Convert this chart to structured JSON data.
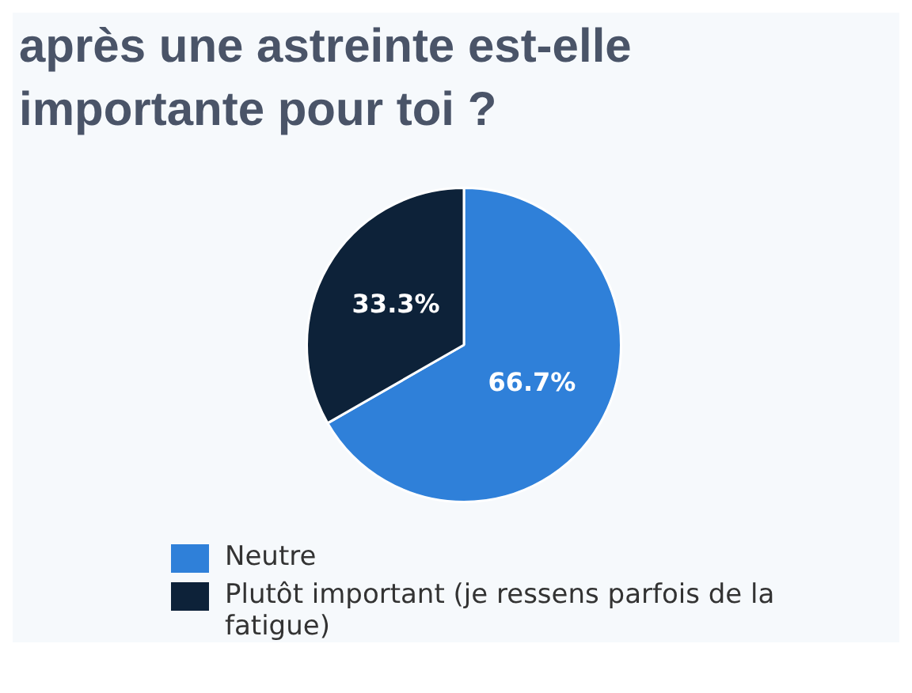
{
  "chart_data": {
    "type": "pie",
    "title": "après une astreinte est-elle importante pour toi ?",
    "categories": [
      "Neutre",
      "Plutôt important (je ressens parfois de la fatigue)"
    ],
    "values": [
      66.7,
      33.3
    ],
    "colors": [
      "#2f80d9",
      "#0d2239"
    ],
    "value_labels": [
      "66.7%",
      "33.3%"
    ],
    "legend": "bottom"
  }
}
